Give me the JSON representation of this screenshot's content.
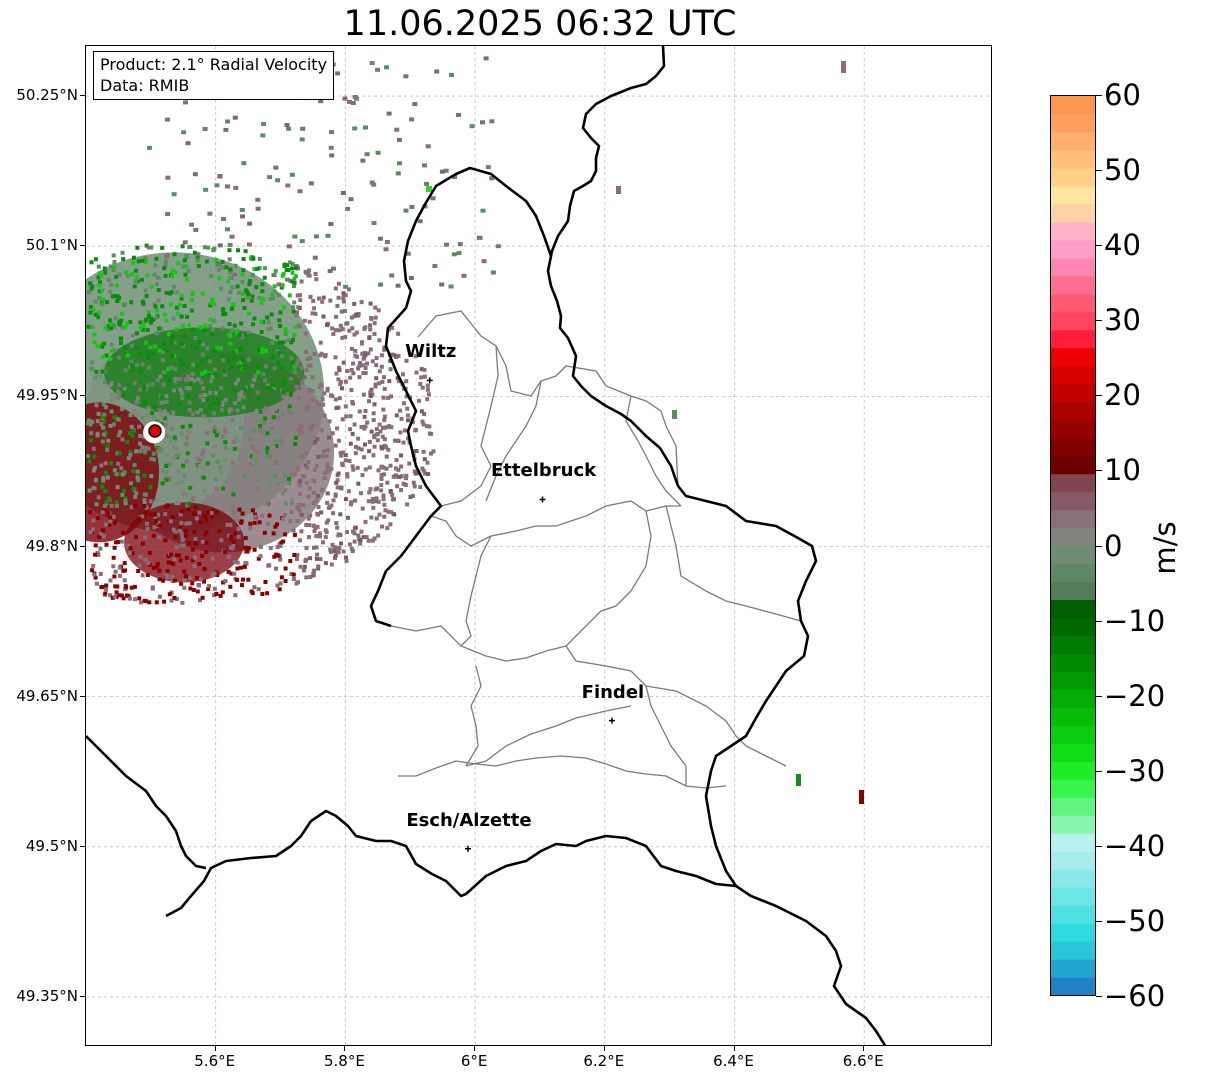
{
  "title": "11.06.2025 06:32 UTC",
  "info_box": {
    "product": "Product: 2.1° Radial Velocity",
    "data": "Data: RMIB"
  },
  "axes": {
    "lat_ticks": [
      "50.25°N",
      "50.1°N",
      "49.95°N",
      "49.8°N",
      "49.65°N",
      "49.5°N",
      "49.35°N"
    ],
    "lon_ticks": [
      "5.6°E",
      "5.8°E",
      "6°E",
      "6.2°E",
      "6.4°E",
      "6.6°E"
    ],
    "grid": true,
    "lon_range": [
      5.4,
      6.8
    ],
    "lat_range": [
      49.3,
      50.3
    ]
  },
  "cities": [
    {
      "name": "Wiltz",
      "lat": 49.966,
      "lon": 5.93
    },
    {
      "name": "Ettelbruck",
      "lat": 49.847,
      "lon": 6.104
    },
    {
      "name": "Findel",
      "lat": 49.626,
      "lon": 6.211
    },
    {
      "name": "Esch/Alzette",
      "lat": 49.498,
      "lon": 5.989
    }
  ],
  "radar_site": {
    "lat": 49.914,
    "lon": 5.505
  },
  "colorbar": {
    "label": "m/s",
    "min": -60,
    "max": 60,
    "ticks": [
      "60",
      "50",
      "40",
      "30",
      "20",
      "10",
      "0",
      "−10",
      "−20",
      "−30",
      "−40",
      "−50",
      "−60"
    ],
    "tick_values": [
      60,
      50,
      40,
      30,
      20,
      10,
      0,
      -10,
      -20,
      -30,
      -40,
      -50,
      -60
    ],
    "colors": [
      "#2081c3",
      "#22a5cf",
      "#28c6d8",
      "#2fdbe0",
      "#4fe0e3",
      "#6de4e6",
      "#8ae8ea",
      "#a4ecee",
      "#b9f0f1",
      "#88f5b0",
      "#60f57e",
      "#38f54c",
      "#1eec28",
      "#10dc16",
      "#0bcc0e",
      "#07bc09",
      "#04ab06",
      "#029a04",
      "#018a03",
      "#007a02",
      "#006a01",
      "#005d00",
      "#527d58",
      "#5e8764",
      "#6e8c73",
      "#84847e",
      "#8a7078",
      "#865a64",
      "#814550",
      "#6a0000",
      "#800000",
      "#950000",
      "#ab0000",
      "#c10000",
      "#d60000",
      "#ec0000",
      "#ff1f3a",
      "#ff4560",
      "#ff5a72",
      "#ff7090",
      "#ff86b2",
      "#ff9ec8",
      "#ffb3c6",
      "#ffd2a8",
      "#ffe6a0",
      "#ffd08a",
      "#ffc07c",
      "#ffb070",
      "#ffa060",
      "#ff9650"
    ]
  }
}
